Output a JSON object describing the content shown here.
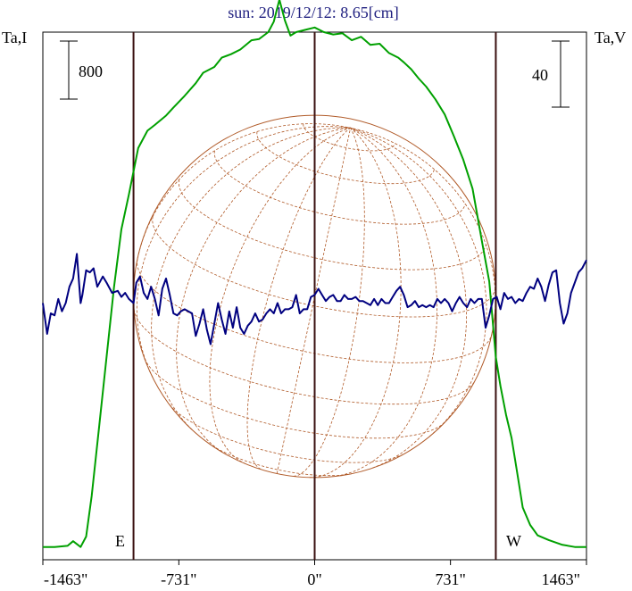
{
  "chart_data": {
    "type": "line",
    "title": "sun: 2019/12/12: 8.65[cm]",
    "ylabel_left": "Ta,I",
    "ylabel_right": "Ta,V",
    "scale_left_label": "800",
    "scale_right_label": "40",
    "xlim": [
      -1463,
      1463
    ],
    "ticks": [
      {
        "value": -1463,
        "label": "-1463\""
      },
      {
        "value": -731,
        "label": "-731\""
      },
      {
        "value": 0,
        "label": "0\""
      },
      {
        "value": 731,
        "label": "731\""
      },
      {
        "value": 1463,
        "label": "1463\""
      }
    ],
    "limb_east": -975,
    "limb_west": 975,
    "limb_labels": {
      "east": "E",
      "west": "W"
    },
    "series": [
      {
        "key": "stokes_i",
        "color": "#00a000",
        "ylim": [
          -50,
          4500
        ],
        "points": [
          [
            -1463,
            60
          ],
          [
            -1400,
            60
          ],
          [
            -1330,
            70
          ],
          [
            -1300,
            110
          ],
          [
            -1260,
            60
          ],
          [
            -1230,
            150
          ],
          [
            -1200,
            500
          ],
          [
            -1160,
            1100
          ],
          [
            -1120,
            1700
          ],
          [
            -1080,
            2300
          ],
          [
            -1040,
            2800
          ],
          [
            -1000,
            3100
          ],
          [
            -975,
            3300
          ],
          [
            -950,
            3500
          ],
          [
            -900,
            3650
          ],
          [
            -860,
            3700
          ],
          [
            -800,
            3780
          ],
          [
            -760,
            3850
          ],
          [
            -700,
            3950
          ],
          [
            -640,
            4060
          ],
          [
            -600,
            4150
          ],
          [
            -540,
            4200
          ],
          [
            -500,
            4280
          ],
          [
            -450,
            4310
          ],
          [
            -400,
            4350
          ],
          [
            -340,
            4430
          ],
          [
            -300,
            4440
          ],
          [
            -250,
            4500
          ],
          [
            -220,
            4590
          ],
          [
            -190,
            4780
          ],
          [
            -160,
            4600
          ],
          [
            -130,
            4470
          ],
          [
            -100,
            4500
          ],
          [
            -50,
            4520
          ],
          [
            0,
            4540
          ],
          [
            50,
            4500
          ],
          [
            100,
            4480
          ],
          [
            150,
            4490
          ],
          [
            200,
            4430
          ],
          [
            250,
            4460
          ],
          [
            300,
            4390
          ],
          [
            350,
            4400
          ],
          [
            400,
            4320
          ],
          [
            450,
            4280
          ],
          [
            480,
            4240
          ],
          [
            520,
            4180
          ],
          [
            560,
            4100
          ],
          [
            600,
            4030
          ],
          [
            650,
            3920
          ],
          [
            700,
            3790
          ],
          [
            750,
            3600
          ],
          [
            800,
            3400
          ],
          [
            850,
            3150
          ],
          [
            900,
            2700
          ],
          [
            940,
            2350
          ],
          [
            975,
            1700
          ],
          [
            1000,
            1450
          ],
          [
            1030,
            1200
          ],
          [
            1060,
            1000
          ],
          [
            1090,
            700
          ],
          [
            1120,
            400
          ],
          [
            1160,
            250
          ],
          [
            1200,
            160
          ],
          [
            1260,
            120
          ],
          [
            1330,
            80
          ],
          [
            1400,
            60
          ],
          [
            1463,
            60
          ]
        ]
      },
      {
        "key": "stokes_v",
        "color": "#000080",
        "ylim": [
          -125,
          132
        ],
        "points": [
          [
            -1463,
            0
          ],
          [
            -1440,
            -15
          ],
          [
            -1420,
            -5
          ],
          [
            -1400,
            -6
          ],
          [
            -1380,
            2
          ],
          [
            -1360,
            -4
          ],
          [
            -1340,
            0
          ],
          [
            -1320,
            8
          ],
          [
            -1300,
            12
          ],
          [
            -1280,
            24
          ],
          [
            -1260,
            0
          ],
          [
            -1250,
            4
          ],
          [
            -1230,
            16
          ],
          [
            -1210,
            15
          ],
          [
            -1190,
            17
          ],
          [
            -1170,
            8
          ],
          [
            -1140,
            13
          ],
          [
            -1120,
            10
          ],
          [
            -1090,
            5
          ],
          [
            -1060,
            6
          ],
          [
            -1040,
            3
          ],
          [
            -1020,
            5
          ],
          [
            -1000,
            2
          ],
          [
            -975,
            0
          ],
          [
            -960,
            10
          ],
          [
            -940,
            13
          ],
          [
            -920,
            5
          ],
          [
            -900,
            2
          ],
          [
            -880,
            8
          ],
          [
            -860,
            2
          ],
          [
            -840,
            -6
          ],
          [
            -820,
            7
          ],
          [
            -800,
            12
          ],
          [
            -780,
            4
          ],
          [
            -760,
            -5
          ],
          [
            -740,
            -6
          ],
          [
            -720,
            -4
          ],
          [
            -700,
            -3
          ],
          [
            -680,
            -4
          ],
          [
            -660,
            -5
          ],
          [
            -640,
            -16
          ],
          [
            -620,
            -10
          ],
          [
            -600,
            -3
          ],
          [
            -580,
            -13
          ],
          [
            -560,
            -20
          ],
          [
            -540,
            -10
          ],
          [
            -520,
            0
          ],
          [
            -500,
            -8
          ],
          [
            -480,
            -15
          ],
          [
            -460,
            -4
          ],
          [
            -440,
            -12
          ],
          [
            -420,
            -2
          ],
          [
            -400,
            -12
          ],
          [
            -380,
            -15
          ],
          [
            -360,
            -11
          ],
          [
            -340,
            -9
          ],
          [
            -320,
            -5
          ],
          [
            -300,
            -9
          ],
          [
            -280,
            -8
          ],
          [
            -260,
            -5
          ],
          [
            -240,
            -3
          ],
          [
            -220,
            -5
          ],
          [
            -200,
            0
          ],
          [
            -180,
            -5
          ],
          [
            -160,
            -3
          ],
          [
            -140,
            -3
          ],
          [
            -120,
            -2
          ],
          [
            -100,
            4
          ],
          [
            -80,
            -5
          ],
          [
            -60,
            -3
          ],
          [
            -40,
            -3
          ],
          [
            -20,
            3
          ],
          [
            0,
            4
          ],
          [
            20,
            7
          ],
          [
            40,
            4
          ],
          [
            60,
            1
          ],
          [
            80,
            3
          ],
          [
            100,
            4
          ],
          [
            120,
            1
          ],
          [
            140,
            1
          ],
          [
            160,
            4
          ],
          [
            180,
            2
          ],
          [
            200,
            2
          ],
          [
            220,
            3
          ],
          [
            240,
            1
          ],
          [
            260,
            1
          ],
          [
            280,
            0
          ],
          [
            300,
            -1
          ],
          [
            320,
            2
          ],
          [
            340,
            -1
          ],
          [
            360,
            2
          ],
          [
            380,
            0
          ],
          [
            400,
            0
          ],
          [
            420,
            3
          ],
          [
            440,
            6
          ],
          [
            460,
            8
          ],
          [
            480,
            4
          ],
          [
            500,
            -2
          ],
          [
            520,
            -1
          ],
          [
            540,
            1
          ],
          [
            560,
            -2
          ],
          [
            580,
            -1
          ],
          [
            600,
            -2
          ],
          [
            620,
            -1
          ],
          [
            640,
            -2
          ],
          [
            660,
            2
          ],
          [
            680,
            0
          ],
          [
            700,
            2
          ],
          [
            720,
            0
          ],
          [
            740,
            -4
          ],
          [
            760,
            0
          ],
          [
            780,
            3
          ],
          [
            800,
            0
          ],
          [
            820,
            -2
          ],
          [
            840,
            2
          ],
          [
            860,
            0
          ],
          [
            880,
            2
          ],
          [
            900,
            2
          ],
          [
            920,
            -12
          ],
          [
            940,
            -6
          ],
          [
            960,
            2
          ],
          [
            980,
            3
          ],
          [
            1000,
            -3
          ],
          [
            1020,
            5
          ],
          [
            1040,
            2
          ],
          [
            1060,
            3
          ],
          [
            1080,
            0
          ],
          [
            1100,
            2
          ],
          [
            1120,
            1
          ],
          [
            1140,
            5
          ],
          [
            1160,
            8
          ],
          [
            1180,
            7
          ],
          [
            1200,
            12
          ],
          [
            1220,
            8
          ],
          [
            1240,
            1
          ],
          [
            1260,
            9
          ],
          [
            1280,
            15
          ],
          [
            1300,
            16
          ],
          [
            1320,
            0
          ],
          [
            1340,
            -10
          ],
          [
            1360,
            -5
          ],
          [
            1380,
            5
          ],
          [
            1400,
            10
          ],
          [
            1420,
            15
          ],
          [
            1440,
            17
          ],
          [
            1463,
            21
          ]
        ]
      }
    ],
    "disk": {
      "radius": 975,
      "color": "#b05a28"
    }
  }
}
